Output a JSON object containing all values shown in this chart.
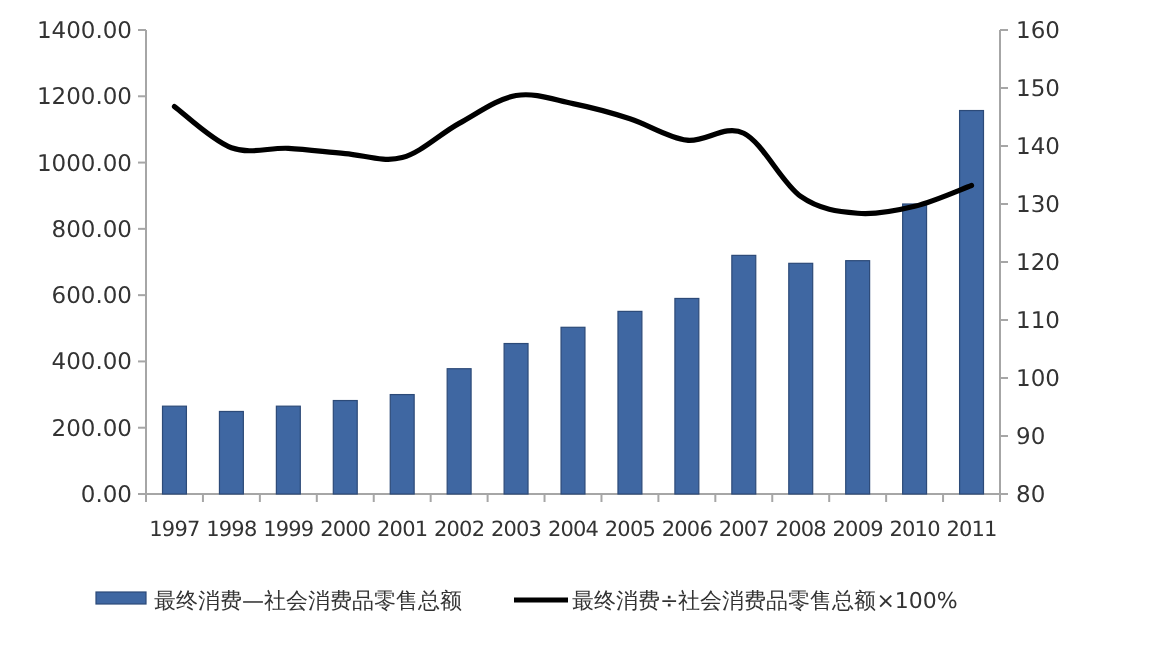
{
  "chart_data": {
    "type": "bar",
    "categories": [
      "1997",
      "1998",
      "1999",
      "2000",
      "2001",
      "2002",
      "2003",
      "2004",
      "2005",
      "2006",
      "2007",
      "2008",
      "2009",
      "2010",
      "2011"
    ],
    "series": [
      {
        "name": "最终消费—社会消费品零售总额",
        "color": "#3f67a2",
        "values": [
          265,
          249,
          265,
          282,
          300,
          378,
          454,
          503,
          551,
          590,
          720,
          696,
          704,
          875,
          1157
        ]
      },
      {
        "name": "最终消费÷社会消费品零售总额×100%",
        "type": "line",
        "axis": "y2",
        "color": "#000000",
        "values": [
          146.8,
          139.7,
          139.6,
          138.7,
          138.0,
          143.9,
          148.7,
          147.3,
          144.7,
          141.0,
          142.2,
          131.3,
          128.4,
          129.6,
          133.2
        ]
      }
    ],
    "ylim": [
      0,
      1400
    ],
    "yticks": [
      {
        "value": 0,
        "label": "0.00"
      },
      {
        "value": 200,
        "label": "200.00"
      },
      {
        "value": 400,
        "label": "400.00"
      },
      {
        "value": 600,
        "label": "600.00"
      },
      {
        "value": 800,
        "label": "800.00"
      },
      {
        "value": 1000,
        "label": "1000.00"
      },
      {
        "value": 1200,
        "label": "1200.00"
      },
      {
        "value": 1400,
        "label": "1400.00"
      }
    ],
    "y2lim": [
      80,
      160
    ],
    "y2ticks": [
      80,
      90,
      100,
      110,
      120,
      130,
      140,
      150,
      160
    ],
    "legend": "bottom",
    "grid": false
  }
}
